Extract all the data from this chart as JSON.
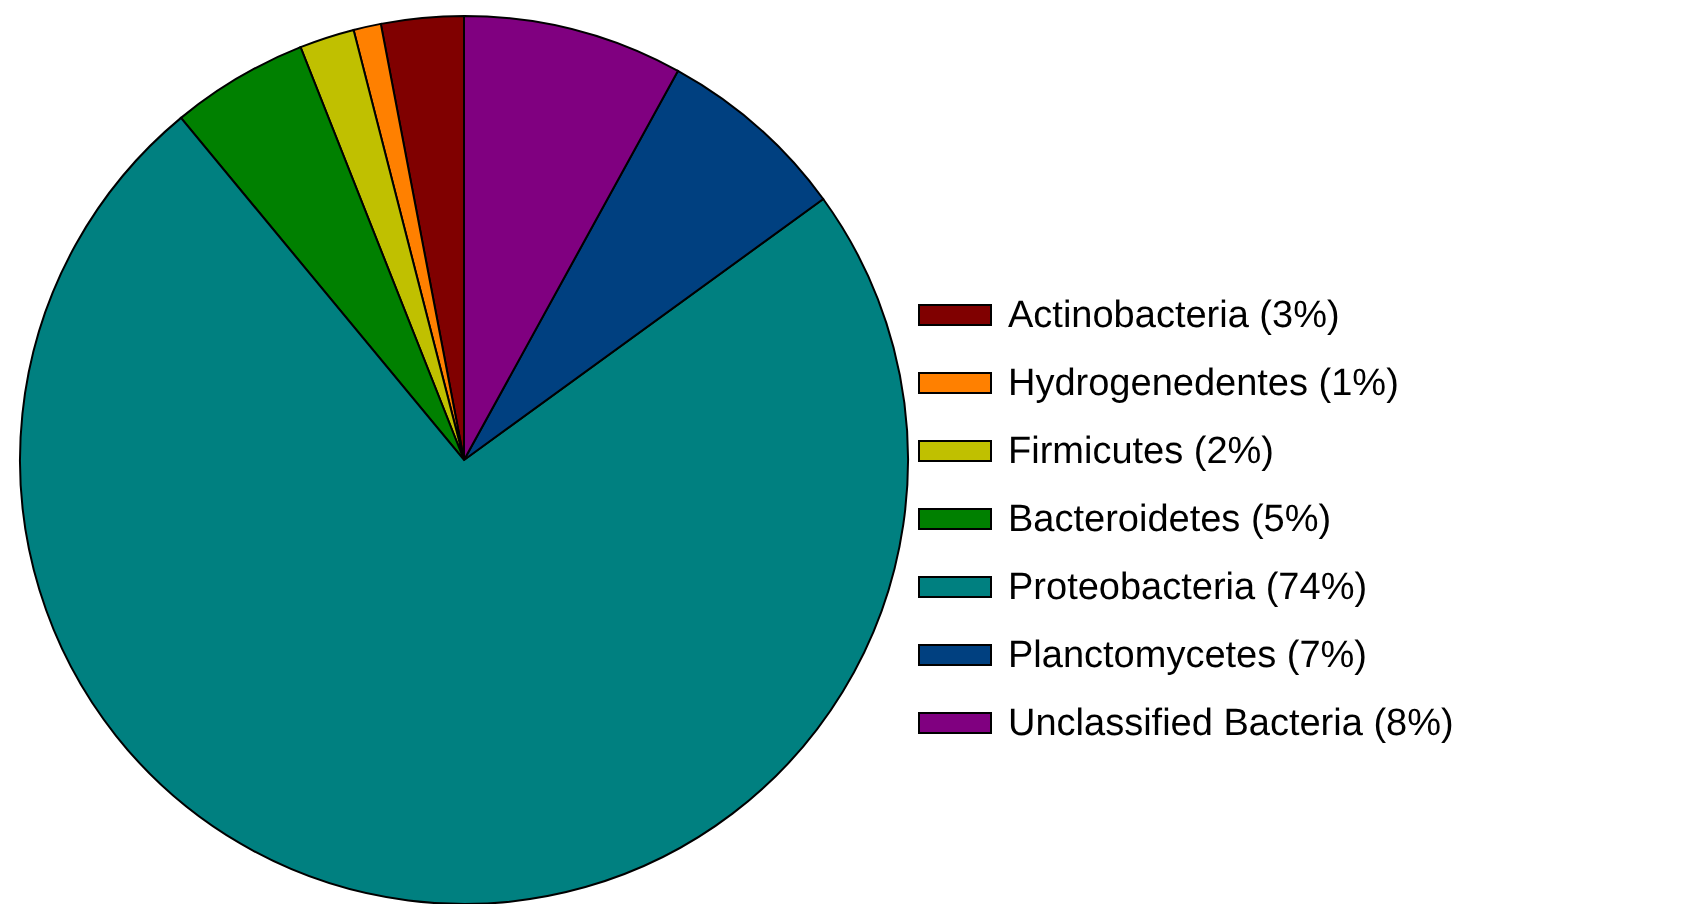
{
  "chart_data": {
    "type": "pie",
    "categories": [
      "Actinobacteria (3%)",
      "Hydrogenedentes (1%)",
      "Firmicutes (2%)",
      "Bacteroidetes (5%)",
      "Proteobacteria (74%)",
      "Planctomycetes (7%)",
      "Unclassified Bacteria (8%)"
    ],
    "values": [
      3,
      1,
      2,
      5,
      74,
      7,
      8
    ],
    "colors": [
      "#800000",
      "#ff8000",
      "#c0c000",
      "#008000",
      "#008080",
      "#004080",
      "#800080"
    ],
    "legend": "right"
  }
}
